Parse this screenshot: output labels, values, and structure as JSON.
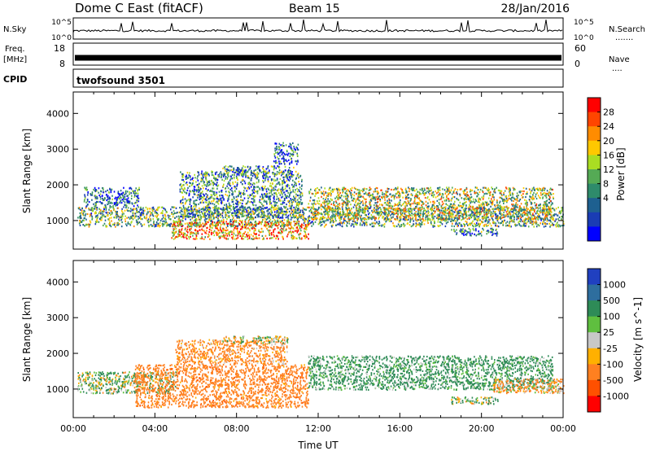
{
  "header": {
    "radar": "Dome C East (fitACF)",
    "beam": "Beam 15",
    "date": "28/Jan/2016"
  },
  "params": {
    "nsky_label": "N.Sky",
    "nsearch_label": "N.Search",
    "nsearch_dots": ".......",
    "nsky_ticks": [
      "10^5",
      "10^0"
    ],
    "nsearch_ticks": [
      "10^5",
      "10^0"
    ],
    "freq_label_1": "Freq.",
    "freq_label_2": "[MHz]",
    "freq_ticks": [
      "18",
      "8"
    ],
    "nave_label": "Nave",
    "nave_dots": "....",
    "nave_ticks": [
      "60",
      "0"
    ],
    "cpid_label": "CPID",
    "cpid_value": "twofsound 3501"
  },
  "chart_data": [
    {
      "type": "heatmap",
      "name": "power",
      "xlabel": "",
      "ylabel": "Slant Range [km]",
      "xlim": [
        0,
        24
      ],
      "ylim": [
        200,
        4600
      ],
      "yticks": [
        "1000",
        "2000",
        "3000",
        "4000"
      ],
      "colorbar": {
        "label": "Power [dB]",
        "ticks": [
          "28",
          "24",
          "20",
          "16",
          "12",
          "8",
          "4"
        ],
        "colors": [
          "#ff0000",
          "#ff4500",
          "#ff8c00",
          "#ffc800",
          "#aadd22",
          "#55aa55",
          "#2e8b6b",
          "#1e6090",
          "#1a3cb4",
          "#0000ff"
        ]
      },
      "regions": [
        {
          "t0": 0.2,
          "t1": 24,
          "r0": 850,
          "r1": 1400,
          "value": 14
        },
        {
          "t0": 0.5,
          "t1": 3.2,
          "r0": 1400,
          "r1": 1950,
          "value": 9
        },
        {
          "t0": 5.2,
          "t1": 11.2,
          "r0": 1100,
          "r1": 2400,
          "value": 12
        },
        {
          "t0": 7.3,
          "t1": 10.8,
          "r0": 2300,
          "r1": 2550,
          "value": 11
        },
        {
          "t0": 9.8,
          "t1": 11.0,
          "r0": 2600,
          "r1": 3200,
          "value": 8
        },
        {
          "t0": 11.5,
          "t1": 23.5,
          "r0": 1050,
          "r1": 1950,
          "value": 17
        },
        {
          "t0": 18.5,
          "t1": 20.8,
          "r0": 600,
          "r1": 800,
          "value": 10
        },
        {
          "t0": 4.8,
          "t1": 11.5,
          "r0": 500,
          "r1": 1000,
          "value": 22
        }
      ]
    },
    {
      "type": "heatmap",
      "name": "velocity",
      "xlabel": "Time UT",
      "ylabel": "Slant Range [km]",
      "xlim": [
        0,
        24
      ],
      "ylim": [
        200,
        4600
      ],
      "xticks": [
        "00:00",
        "04:00",
        "08:00",
        "12:00",
        "16:00",
        "20:00",
        "00:00"
      ],
      "yticks": [
        "1000",
        "2000",
        "3000",
        "4000"
      ],
      "colorbar": {
        "label": "Velocity [m s^-1]",
        "ticks": [
          "1000",
          "500",
          "100",
          "25",
          "-25",
          "-100",
          "-500",
          "-1000"
        ],
        "colors": [
          "#2040c0",
          "#2e6e9e",
          "#2e8b57",
          "#5fbf3f",
          "#c8c8c8",
          "#ffb000",
          "#ff8020",
          "#ff5000",
          "#ff0000"
        ]
      },
      "regions": [
        {
          "t0": 0.2,
          "t1": 5.0,
          "r0": 900,
          "r1": 1500,
          "value": 80
        },
        {
          "t0": 3.0,
          "t1": 11.5,
          "r0": 500,
          "r1": 1700,
          "value": -300
        },
        {
          "t0": 5.0,
          "t1": 10.5,
          "r0": 1700,
          "r1": 2400,
          "value": -200
        },
        {
          "t0": 7.3,
          "t1": 10.5,
          "r0": 2300,
          "r1": 2500,
          "value": 0
        },
        {
          "t0": 11.5,
          "t1": 23.5,
          "r0": 1000,
          "r1": 1950,
          "value": 200
        },
        {
          "t0": 18.5,
          "t1": 20.8,
          "r0": 600,
          "r1": 800,
          "value": 60
        },
        {
          "t0": 20.5,
          "t1": 24,
          "r0": 900,
          "r1": 1300,
          "value": -150
        }
      ]
    }
  ]
}
